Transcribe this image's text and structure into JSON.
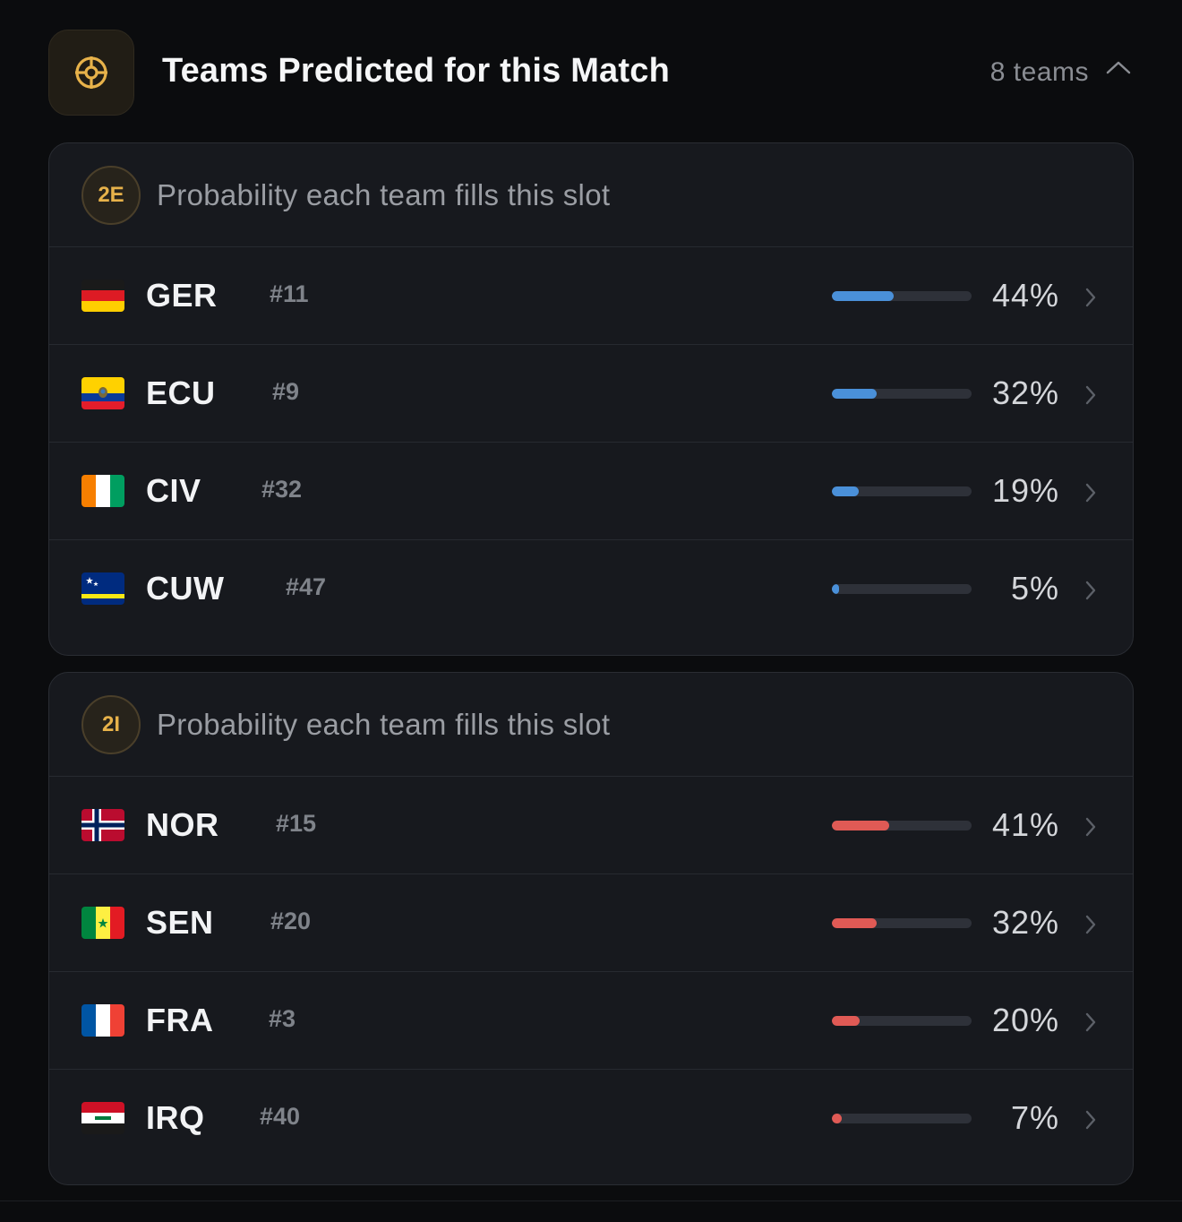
{
  "header": {
    "title": "Teams Predicted for this Match",
    "count": "8 teams",
    "icon": "target-icon",
    "accent": "#e7b24a"
  },
  "colors": {
    "slot_2E_bar": "#4a90d9",
    "slot_2I_bar": "#e05a55"
  },
  "slots": [
    {
      "badge": "2E",
      "subtitle": "Probability each team fills this slot",
      "teams": [
        {
          "code": "GER",
          "rank": "#11",
          "pct": "44%",
          "value": 44,
          "flag": "germany-flag"
        },
        {
          "code": "ECU",
          "rank": "#9",
          "pct": "32%",
          "value": 32,
          "flag": "ecuador-flag"
        },
        {
          "code": "CIV",
          "rank": "#32",
          "pct": "19%",
          "value": 19,
          "flag": "ivory-coast-flag"
        },
        {
          "code": "CUW",
          "rank": "#47",
          "pct": "5%",
          "value": 5,
          "flag": "curacao-flag"
        }
      ]
    },
    {
      "badge": "2I",
      "subtitle": "Probability each team fills this slot",
      "teams": [
        {
          "code": "NOR",
          "rank": "#15",
          "pct": "41%",
          "value": 41,
          "flag": "norway-flag"
        },
        {
          "code": "SEN",
          "rank": "#20",
          "pct": "32%",
          "value": 32,
          "flag": "senegal-flag"
        },
        {
          "code": "FRA",
          "rank": "#3",
          "pct": "20%",
          "value": 20,
          "flag": "france-flag"
        },
        {
          "code": "IRQ",
          "rank": "#40",
          "pct": "7%",
          "value": 7,
          "flag": "iraq-flag"
        }
      ]
    }
  ]
}
